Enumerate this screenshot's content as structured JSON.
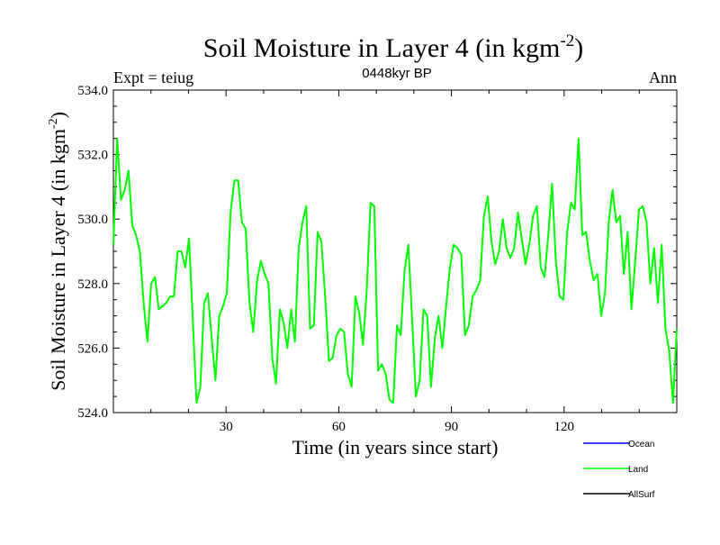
{
  "header": {
    "title_main": "Soil Moisture in Layer 4 (in kgm",
    "title_exp": "-2",
    "title_close": ")",
    "expt_label": "Expt = teiug",
    "period_label": "0448kyr BP",
    "season_label": "Ann"
  },
  "chart_data": {
    "type": "line",
    "title": "Soil Moisture in Layer 4 (in kgm-2)",
    "xlabel": "Time (in years since start)",
    "ylabel_main": "Soil Moisture in Layer 4 (in kgm",
    "ylabel_exp": "-2",
    "ylabel_close": ")",
    "xlim": [
      0,
      150
    ],
    "ylim": [
      524.0,
      534.0
    ],
    "x_ticks": [
      30,
      60,
      90,
      120
    ],
    "x_tick_labels": [
      "30",
      "60",
      "90",
      "120"
    ],
    "y_ticks": [
      524,
      526,
      528,
      530,
      532,
      534
    ],
    "y_tick_labels": [
      "524.0",
      "526.0",
      "528.0",
      "530.0",
      "532.0",
      "534.0"
    ],
    "series": [
      {
        "name": "Ocean",
        "color": "#0000ff",
        "values": []
      },
      {
        "name": "Land",
        "color": "#00ff00",
        "values": [
          529.2,
          532.5,
          530.6,
          530.9,
          531.5,
          529.8,
          529.5,
          529.0,
          527.4,
          526.2,
          528.0,
          528.2,
          527.2,
          527.3,
          527.4,
          527.6,
          527.6,
          529.0,
          529.0,
          528.5,
          529.4,
          526.9,
          524.3,
          524.8,
          527.4,
          527.7,
          526.3,
          525.0,
          527.0,
          527.3,
          527.7,
          530.2,
          531.2,
          531.2,
          529.9,
          529.7,
          527.4,
          526.5,
          528.1,
          528.7,
          528.3,
          528.0,
          525.7,
          524.9,
          527.2,
          526.8,
          526.0,
          527.2,
          526.2,
          529.1,
          529.9,
          530.4,
          526.6,
          526.7,
          529.6,
          529.3,
          527.6,
          525.6,
          525.7,
          526.4,
          526.6,
          526.5,
          525.2,
          524.8,
          527.6,
          527.1,
          526.1,
          527.8,
          530.5,
          530.4,
          525.3,
          525.5,
          525.2,
          524.4,
          524.3,
          526.7,
          526.4,
          528.4,
          529.2,
          526.9,
          524.5,
          525.0,
          527.2,
          527.0,
          524.8,
          526.3,
          527.0,
          526.0,
          527.3,
          528.5,
          529.2,
          529.1,
          528.9,
          526.4,
          526.7,
          527.6,
          527.8,
          528.1,
          530.1,
          530.7,
          529.3,
          528.6,
          529.0,
          530.0,
          529.1,
          528.8,
          529.1,
          530.2,
          529.4,
          528.6,
          529.2,
          530.1,
          530.4,
          528.5,
          528.2,
          529.5,
          531.1,
          528.7,
          527.6,
          527.5,
          529.6,
          530.5,
          530.3,
          532.5,
          529.5,
          529.6,
          528.7,
          528.1,
          528.3,
          527.0,
          527.7,
          529.9,
          530.9,
          529.9,
          530.1,
          528.3,
          529.6,
          527.2,
          528.7,
          530.3,
          530.4,
          529.9,
          528.0,
          529.1,
          527.4,
          529.2,
          526.6,
          525.9,
          524.3,
          526.6
        ]
      },
      {
        "name": "AllSurf",
        "color": "#000000",
        "values": []
      }
    ],
    "legend_position": "bottom-right"
  }
}
